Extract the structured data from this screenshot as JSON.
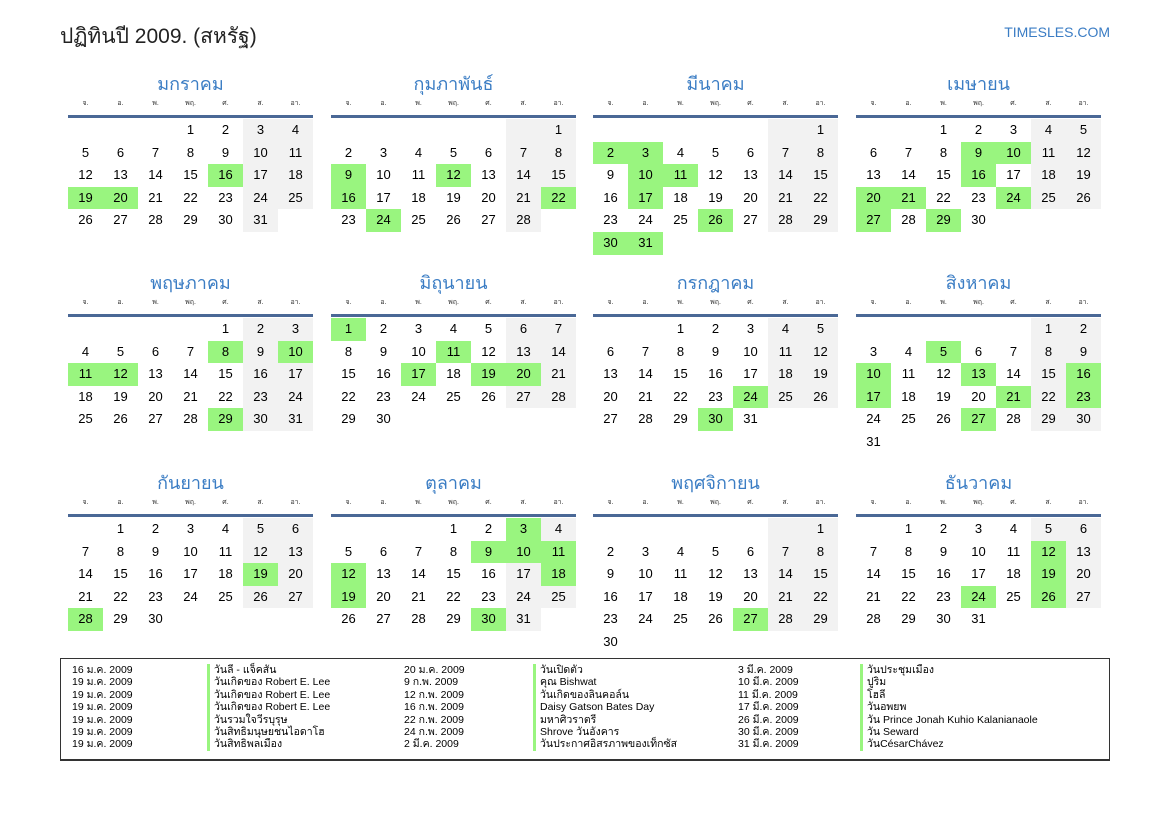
{
  "header": {
    "title": "ปฏิทินปี 2009. (สหรัฐ)",
    "site": "TIMESLES.COM"
  },
  "weekdays": [
    "จ.",
    "อ.",
    "พ.",
    "พฤ.",
    "ศ.",
    "ส.",
    "อา."
  ],
  "colors": {
    "holiday": "#99f57f",
    "weekend": "#f2f2f2",
    "accent": "#3b7dc4"
  },
  "months": [
    {
      "name": "มกราคม",
      "offset": 3,
      "days": 31,
      "holidays": [
        16,
        19,
        20
      ]
    },
    {
      "name": "กุมภาพันธ์",
      "offset": 6,
      "days": 28,
      "holidays": [
        9,
        12,
        16,
        22,
        24
      ]
    },
    {
      "name": "มีนาคม",
      "offset": 6,
      "days": 31,
      "holidays": [
        2,
        3,
        10,
        11,
        17,
        26,
        30,
        31
      ]
    },
    {
      "name": "เมษายน",
      "offset": 2,
      "days": 30,
      "holidays": [
        9,
        10,
        16,
        20,
        21,
        24,
        27,
        29
      ]
    },
    {
      "name": "พฤษภาคม",
      "offset": 4,
      "days": 31,
      "holidays": [
        8,
        10,
        11,
        12,
        29
      ]
    },
    {
      "name": "มิถุนายน",
      "offset": 0,
      "days": 30,
      "holidays": [
        1,
        11,
        17,
        19,
        20
      ]
    },
    {
      "name": "กรกฎาคม",
      "offset": 2,
      "days": 31,
      "holidays": [
        24,
        30
      ]
    },
    {
      "name": "สิงหาคม",
      "offset": 5,
      "days": 31,
      "holidays": [
        5,
        10,
        13,
        16,
        17,
        21,
        23,
        27
      ]
    },
    {
      "name": "กันยายน",
      "offset": 1,
      "days": 30,
      "holidays": [
        19,
        28
      ]
    },
    {
      "name": "ตุลาคม",
      "offset": 3,
      "days": 31,
      "holidays": [
        3,
        9,
        10,
        11,
        12,
        18,
        19,
        30
      ]
    },
    {
      "name": "พฤศจิกายน",
      "offset": 6,
      "days": 30,
      "holidays": [
        27
      ]
    },
    {
      "name": "ธันวาคม",
      "offset": 1,
      "days": 31,
      "holidays": [
        12,
        19,
        24,
        26
      ]
    }
  ],
  "holiday_list": [
    [
      [
        "16 ม.ค. 2009",
        "วันลี - แจ็คสัน"
      ],
      [
        "19 ม.ค. 2009",
        "วันเกิดของ Robert E. Lee"
      ],
      [
        "19 ม.ค. 2009",
        "วันเกิดของ Robert E. Lee"
      ],
      [
        "19 ม.ค. 2009",
        "วันเกิดของ Robert E. Lee"
      ],
      [
        "19 ม.ค. 2009",
        "วันรวมใจวีรบุรุษ"
      ],
      [
        "19 ม.ค. 2009",
        "วันสิทธิมนุษยชนไอดาโฮ"
      ],
      [
        "19 ม.ค. 2009",
        "วันสิทธิพลเมือง"
      ]
    ],
    [
      [
        "20 ม.ค. 2009",
        "วันเปิดตัว"
      ],
      [
        "9 ก.พ. 2009",
        "คุณ Bishwat"
      ],
      [
        "12 ก.พ. 2009",
        "วันเกิดของลินคอล์น"
      ],
      [
        "16 ก.พ. 2009",
        "Daisy Gatson Bates Day"
      ],
      [
        "22 ก.พ. 2009",
        "มหาศิวราตรี"
      ],
      [
        "24 ก.พ. 2009",
        "Shrove วันอังคาร"
      ],
      [
        "2 มี.ค. 2009",
        "วันประกาศอิสรภาพของเท็กซัส"
      ]
    ],
    [
      [
        "3 มี.ค. 2009",
        "วันประชุมเมือง"
      ],
      [
        "10 มี.ค. 2009",
        "ปูริม"
      ],
      [
        "11 มี.ค. 2009",
        "โฮลี"
      ],
      [
        "17 มี.ค. 2009",
        "วันอพยพ"
      ],
      [
        "26 มี.ค. 2009",
        "วัน Prince Jonah Kuhio Kalanianaole"
      ],
      [
        "30 มี.ค. 2009",
        "วัน Seward"
      ],
      [
        "31 มี.ค. 2009",
        "วันCésarChávez"
      ]
    ]
  ]
}
